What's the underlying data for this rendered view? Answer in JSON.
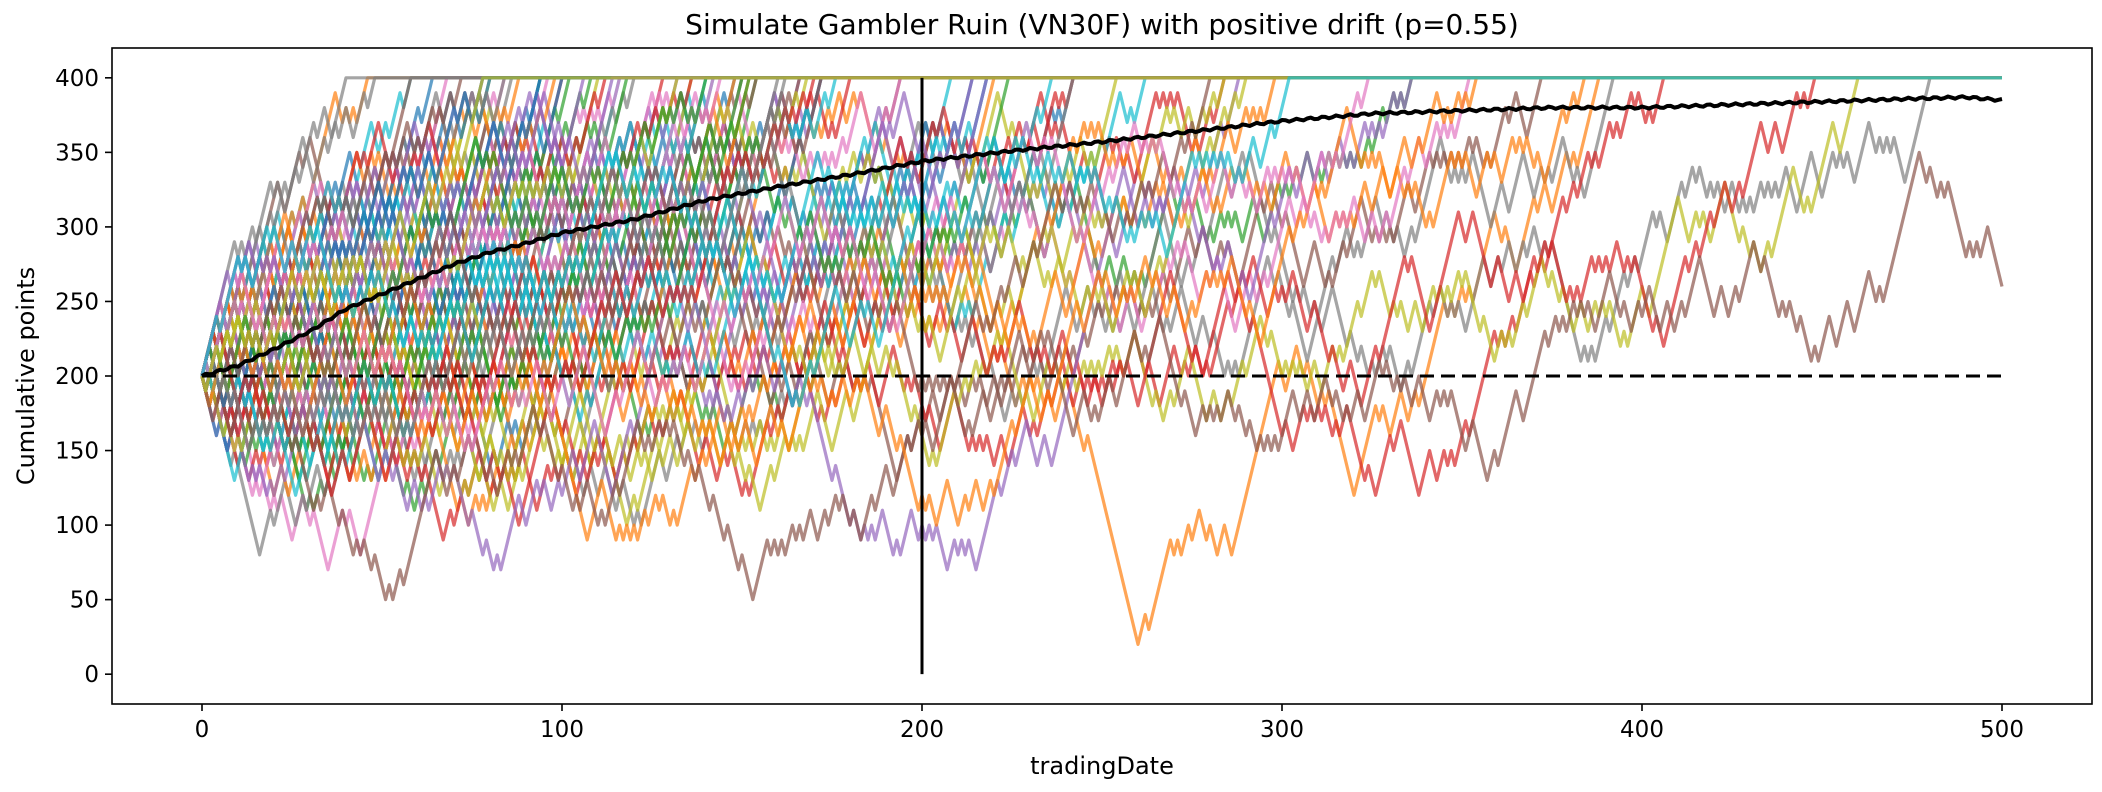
{
  "chart_data": {
    "type": "line",
    "title": "Simulate Gambler Ruin (VN30F) with positive drift (p=0.55)",
    "xlabel": "tradingDate",
    "ylabel": "Cumulative points",
    "xlim": [
      -25,
      525
    ],
    "ylim": [
      -20,
      420
    ],
    "x_ticks": [
      0,
      100,
      200,
      300,
      400,
      500
    ],
    "y_ticks": [
      0,
      50,
      100,
      150,
      200,
      250,
      300,
      350,
      400
    ],
    "grid": false,
    "legend": "none",
    "simulation": {
      "start": 200,
      "step": 10,
      "upper_barrier": 400,
      "lower_barrier": 0,
      "p_up": 0.55,
      "n_steps": 500,
      "n_paths": 100
    },
    "reference_lines": [
      {
        "type": "horizontal",
        "y": 200,
        "style": "dashed",
        "color": "#000000"
      },
      {
        "type": "vertical",
        "x": 200,
        "y_range": [
          0,
          400
        ],
        "style": "solid",
        "color": "#000000"
      }
    ],
    "mean_path": {
      "color": "#000000",
      "x": [
        0,
        10,
        20,
        30,
        40,
        50,
        60,
        70,
        80,
        90,
        100,
        120,
        140,
        160,
        180,
        200,
        225,
        250,
        275,
        300,
        325,
        350,
        375,
        400,
        425,
        450,
        475,
        490,
        500
      ],
      "y": [
        200,
        207,
        218,
        230,
        245,
        255,
        265,
        275,
        283,
        289,
        296,
        305,
        318,
        327,
        335,
        344,
        351,
        357,
        364,
        371,
        376,
        378,
        380,
        380,
        382,
        384,
        386,
        387,
        385
      ]
    },
    "series_colors": [
      "#1f77b4",
      "#ff7f0e",
      "#2ca02c",
      "#d62728",
      "#9467bd",
      "#8c564b",
      "#e377c2",
      "#7f7f7f",
      "#bcbd22",
      "#17becf"
    ]
  }
}
